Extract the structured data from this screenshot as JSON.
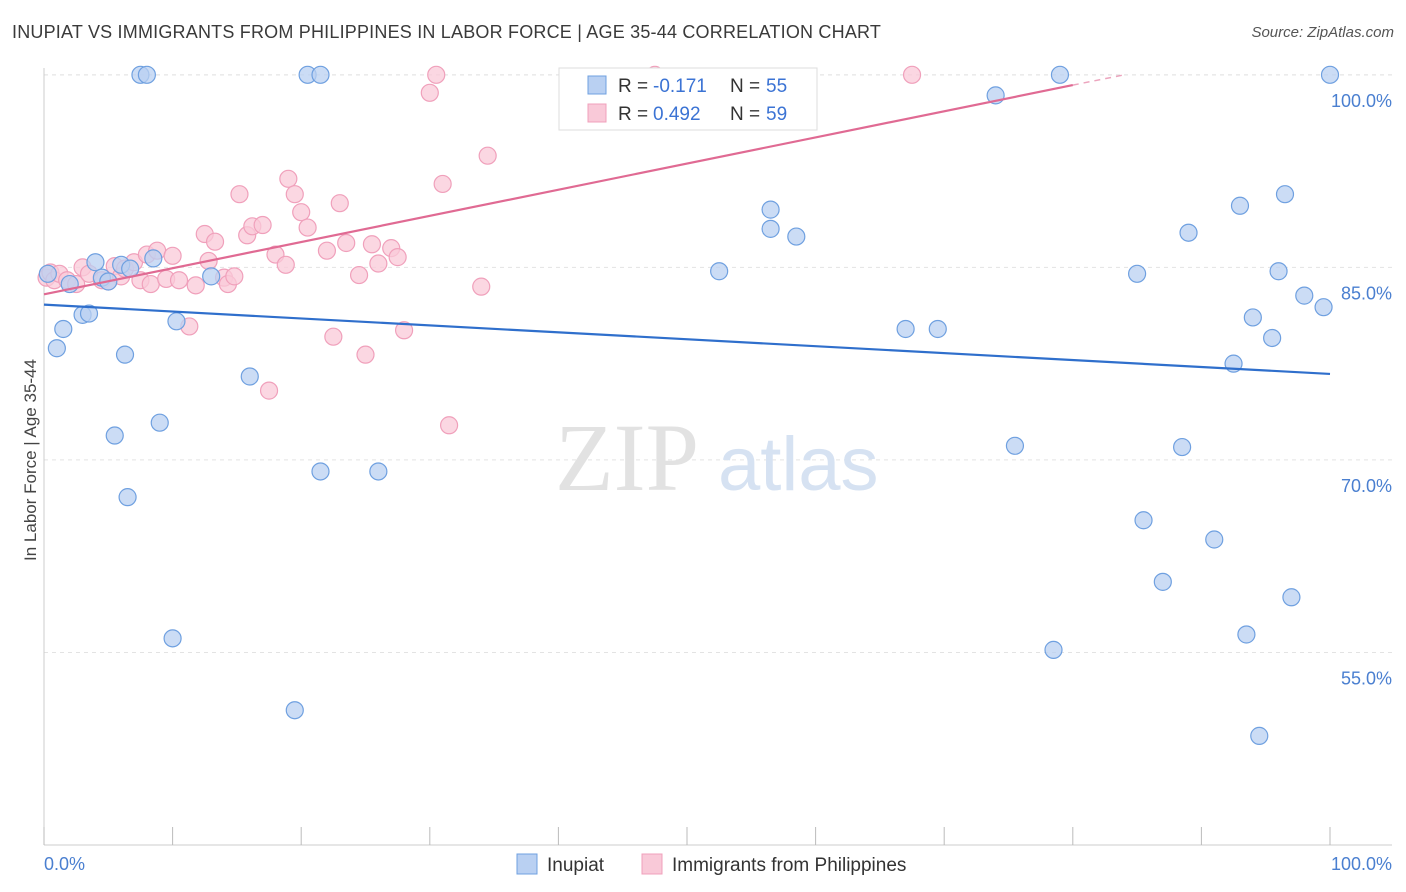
{
  "title": "INUPIAT VS IMMIGRANTS FROM PHILIPPINES IN LABOR FORCE | AGE 35-44 CORRELATION CHART",
  "source": "Source: ZipAtlas.com",
  "watermark": {
    "zip": "ZIP",
    "atlas": "atlas"
  },
  "chart_data": {
    "type": "scatter",
    "xlabel": "",
    "ylabel": "In Labor Force | Age 35-44",
    "xlim": [
      0,
      100
    ],
    "ylim": [
      40,
      101
    ],
    "x_tick_labels": [
      "0.0%",
      "100.0%"
    ],
    "y_ticks": [
      55,
      70,
      85,
      100
    ],
    "y_tick_labels": [
      "55.0%",
      "70.0%",
      "85.0%",
      "100.0%"
    ],
    "grid": true,
    "legend": {
      "placement": "top-center",
      "entries": [
        {
          "series": "Inupiat",
          "r_label": "R =",
          "r_value": "-0.171",
          "n_label": "N =",
          "n_value": "55"
        },
        {
          "series": "Immigrants from Philippines",
          "r_label": "R =",
          "r_value": "0.492",
          "n_label": "N =",
          "n_value": "59"
        }
      ]
    },
    "series": [
      {
        "name": "Inupiat",
        "color": "#6fa0e0",
        "fill": "#b9d0f2",
        "line_color": "#2f6fcc",
        "trend": {
          "x0": 0,
          "y0": 82.1,
          "x1": 100,
          "y1": 76.7
        },
        "points": [
          [
            0.3,
            84.5
          ],
          [
            1,
            78.7
          ],
          [
            1.5,
            80.2
          ],
          [
            2,
            83.7
          ],
          [
            3,
            81.3
          ],
          [
            3.5,
            81.4
          ],
          [
            4,
            85.4
          ],
          [
            4.5,
            84.2
          ],
          [
            5,
            83.9
          ],
          [
            5.5,
            71.9
          ],
          [
            6,
            85.2
          ],
          [
            6.3,
            78.2
          ],
          [
            6.7,
            84.9
          ],
          [
            6.5,
            67.1
          ],
          [
            7.5,
            100
          ],
          [
            8,
            100
          ],
          [
            8.5,
            85.7
          ],
          [
            9,
            72.9
          ],
          [
            10,
            56.1
          ],
          [
            10.3,
            80.8
          ],
          [
            13,
            84.3
          ],
          [
            16,
            76.5
          ],
          [
            19.5,
            50.5
          ],
          [
            20.5,
            100
          ],
          [
            21.5,
            100
          ],
          [
            21.5,
            69.1
          ],
          [
            26,
            69.1
          ],
          [
            52.5,
            84.7
          ],
          [
            56.5,
            89.5
          ],
          [
            56.5,
            88
          ],
          [
            58.5,
            87.4
          ],
          [
            67,
            80.2
          ],
          [
            69.5,
            80.2
          ],
          [
            74,
            98.4
          ],
          [
            75.5,
            71.1
          ],
          [
            78.5,
            55.2
          ],
          [
            79,
            100
          ],
          [
            85,
            84.5
          ],
          [
            85.5,
            65.3
          ],
          [
            87,
            60.5
          ],
          [
            88.5,
            71
          ],
          [
            89,
            87.7
          ],
          [
            91,
            63.8
          ],
          [
            93.5,
            56.4
          ],
          [
            92.5,
            77.5
          ],
          [
            93,
            89.8
          ],
          [
            94,
            81.1
          ],
          [
            94.5,
            48.5
          ],
          [
            95.5,
            79.5
          ],
          [
            96,
            84.7
          ],
          [
            96.5,
            90.7
          ],
          [
            97,
            59.3
          ],
          [
            98,
            82.8
          ],
          [
            99.5,
            81.9
          ],
          [
            100,
            100
          ]
        ]
      },
      {
        "name": "Immigrants from Philippines",
        "color": "#f0a0bb",
        "fill": "#f9c9d8",
        "line_color": "#e06a93",
        "trend": {
          "x0": 0,
          "y0": 82.9,
          "x1": 80,
          "y1": 99.2
        },
        "trend_dashed_to": {
          "x": 84,
          "y": 100
        },
        "points": [
          [
            0.2,
            84.2
          ],
          [
            0.5,
            84.6
          ],
          [
            0.8,
            84
          ],
          [
            1.2,
            84.5
          ],
          [
            1.8,
            84
          ],
          [
            2.5,
            83.7
          ],
          [
            3,
            85
          ],
          [
            3.5,
            84.5
          ],
          [
            4.5,
            84
          ],
          [
            5,
            83.9
          ],
          [
            5.5,
            85.1
          ],
          [
            6,
            84.3
          ],
          [
            6.3,
            84.9
          ],
          [
            7,
            85.4
          ],
          [
            7.5,
            84
          ],
          [
            8,
            86
          ],
          [
            8.3,
            83.7
          ],
          [
            8.8,
            86.3
          ],
          [
            9.5,
            84.1
          ],
          [
            10,
            85.9
          ],
          [
            10.5,
            84
          ],
          [
            11.3,
            80.4
          ],
          [
            11.8,
            83.6
          ],
          [
            12.5,
            87.6
          ],
          [
            12.8,
            85.5
          ],
          [
            13.3,
            87
          ],
          [
            14,
            84.2
          ],
          [
            14.3,
            83.7
          ],
          [
            14.8,
            84.3
          ],
          [
            15.2,
            90.7
          ],
          [
            15.8,
            87.5
          ],
          [
            16.2,
            88.2
          ],
          [
            17,
            88.3
          ],
          [
            17.5,
            75.4
          ],
          [
            18,
            86
          ],
          [
            18.8,
            85.2
          ],
          [
            19,
            91.9
          ],
          [
            19.5,
            90.7
          ],
          [
            20,
            89.3
          ],
          [
            20.5,
            88.1
          ],
          [
            22,
            86.3
          ],
          [
            22.5,
            79.6
          ],
          [
            23,
            90
          ],
          [
            23.5,
            86.9
          ],
          [
            24.5,
            84.4
          ],
          [
            25,
            78.2
          ],
          [
            25.5,
            86.8
          ],
          [
            26,
            85.3
          ],
          [
            27,
            86.5
          ],
          [
            27.5,
            85.8
          ],
          [
            28,
            80.1
          ],
          [
            30,
            98.6
          ],
          [
            30.5,
            100
          ],
          [
            31,
            91.5
          ],
          [
            31.5,
            72.7
          ],
          [
            34,
            83.5
          ],
          [
            34.5,
            93.7
          ],
          [
            47.5,
            100
          ],
          [
            67.5,
            100
          ]
        ]
      }
    ]
  },
  "bottom_legend": [
    "Inupiat",
    "Immigrants from Philippines"
  ]
}
